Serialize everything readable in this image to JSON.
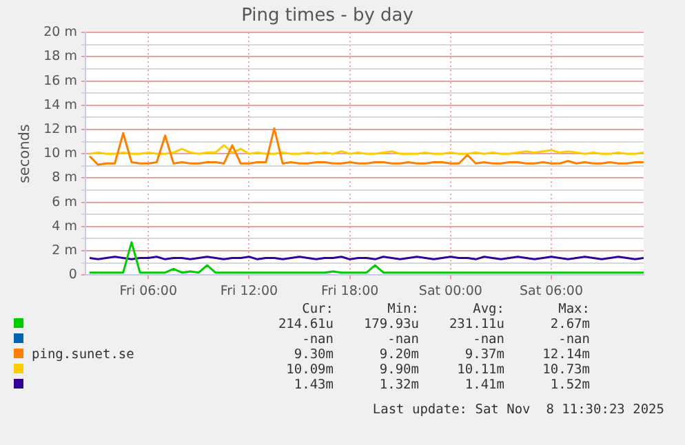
{
  "chart_data": {
    "type": "line",
    "title": "Ping times - by day",
    "ylabel": "seconds",
    "x": [
      "2025-11-07T02:30",
      "2025-11-07T03:00",
      "2025-11-07T03:30",
      "2025-11-07T04:00",
      "2025-11-07T04:30",
      "2025-11-07T05:00",
      "2025-11-07T05:30",
      "2025-11-07T06:00",
      "2025-11-07T06:30",
      "2025-11-07T07:00",
      "2025-11-07T07:30",
      "2025-11-07T08:00",
      "2025-11-07T08:30",
      "2025-11-07T09:00",
      "2025-11-07T09:30",
      "2025-11-07T10:00",
      "2025-11-07T10:30",
      "2025-11-07T11:00",
      "2025-11-07T11:30",
      "2025-11-07T12:00",
      "2025-11-07T12:30",
      "2025-11-07T13:00",
      "2025-11-07T13:30",
      "2025-11-07T14:00",
      "2025-11-07T14:30",
      "2025-11-07T15:00",
      "2025-11-07T15:30",
      "2025-11-07T16:00",
      "2025-11-07T16:30",
      "2025-11-07T17:00",
      "2025-11-07T17:30",
      "2025-11-07T18:00",
      "2025-11-07T18:30",
      "2025-11-07T19:00",
      "2025-11-07T19:30",
      "2025-11-07T20:00",
      "2025-11-07T20:30",
      "2025-11-07T21:00",
      "2025-11-07T21:30",
      "2025-11-07T22:00",
      "2025-11-07T22:30",
      "2025-11-07T23:00",
      "2025-11-07T23:30",
      "2025-11-08T00:00",
      "2025-11-08T00:30",
      "2025-11-08T01:00",
      "2025-11-08T01:30",
      "2025-11-08T02:00",
      "2025-11-08T02:30",
      "2025-11-08T03:00",
      "2025-11-08T03:30",
      "2025-11-08T04:00",
      "2025-11-08T04:30",
      "2025-11-08T05:00",
      "2025-11-08T05:30",
      "2025-11-08T06:00",
      "2025-11-08T06:30",
      "2025-11-08T07:00",
      "2025-11-08T07:30",
      "2025-11-08T08:00",
      "2025-11-08T08:30",
      "2025-11-08T09:00",
      "2025-11-08T09:30",
      "2025-11-08T10:00",
      "2025-11-08T10:30",
      "2025-11-08T11:00",
      "2025-11-08T11:30"
    ],
    "xlim": [
      "2025-11-07T02:15",
      "2025-11-08T11:30"
    ],
    "xticks": [
      {
        "value": "2025-11-07T06:00",
        "label": "Fri 06:00"
      },
      {
        "value": "2025-11-07T12:00",
        "label": "Fri 12:00"
      },
      {
        "value": "2025-11-07T18:00",
        "label": "Fri 18:00"
      },
      {
        "value": "2025-11-08T00:00",
        "label": "Sat 00:00"
      },
      {
        "value": "2025-11-08T06:00",
        "label": "Sat 06:00"
      }
    ],
    "ylim": [
      0,
      20
    ],
    "yticks": [
      0,
      {
        "value": 1,
        "label": null
      },
      {
        "value": 2,
        "label": "2 m"
      },
      {
        "value": 3,
        "label": null
      },
      {
        "value": 4,
        "label": "4 m"
      },
      {
        "value": 5,
        "label": null
      },
      {
        "value": 6,
        "label": "6 m"
      },
      {
        "value": 7,
        "label": null
      },
      {
        "value": 8,
        "label": "8 m"
      },
      {
        "value": 9,
        "label": null
      },
      {
        "value": 10,
        "label": "10 m"
      },
      {
        "value": 11,
        "label": null
      },
      {
        "value": 12,
        "label": "12 m"
      },
      {
        "value": 13,
        "label": null
      },
      {
        "value": 14,
        "label": "14 m"
      },
      {
        "value": 15,
        "label": null
      },
      {
        "value": 16,
        "label": "16 m"
      },
      {
        "value": 17,
        "label": null
      },
      {
        "value": 18,
        "label": "18 m"
      },
      {
        "value": 19,
        "label": null
      },
      {
        "value": 20,
        "label": "20 m"
      }
    ],
    "grid": true,
    "legend": "bottom",
    "marker": "none",
    "line_style": "solid",
    "series": [
      {
        "color": "#00cc00",
        "values": [
          0.2,
          0.2,
          0.2,
          0.2,
          0.2,
          2.7,
          0.2,
          0.2,
          0.2,
          0.2,
          0.5,
          0.2,
          0.3,
          0.2,
          0.8,
          0.2,
          0.2,
          0.2,
          0.2,
          0.2,
          0.2,
          0.2,
          0.2,
          0.2,
          0.2,
          0.2,
          0.2,
          0.2,
          0.2,
          0.3,
          0.2,
          0.2,
          0.2,
          0.2,
          0.8,
          0.2,
          0.2,
          0.2,
          0.2,
          0.2,
          0.2,
          0.2,
          0.2,
          0.2,
          0.2,
          0.2,
          0.2,
          0.2,
          0.2,
          0.2,
          0.2,
          0.2,
          0.2,
          0.2,
          0.2,
          0.2,
          0.2,
          0.2,
          0.2,
          0.2,
          0.2,
          0.2,
          0.2,
          0.2,
          0.2,
          0.2,
          0.2
        ]
      },
      {
        "color": "#0066b3",
        "values": [
          null,
          null,
          null,
          null,
          null,
          null,
          null,
          null,
          null,
          null,
          null,
          null,
          null,
          null,
          null,
          null,
          null,
          null,
          null,
          null,
          null,
          null,
          null,
          null,
          null,
          null,
          null,
          null,
          null,
          null,
          null,
          null,
          null,
          null,
          null,
          null,
          null,
          null,
          null,
          null,
          null,
          null,
          null,
          null,
          null,
          null,
          null,
          null,
          null,
          null,
          null,
          null,
          null,
          null,
          null,
          null,
          null,
          null,
          null,
          null,
          null,
          null,
          null,
          null,
          null,
          null,
          null
        ]
      },
      {
        "name": "ping.sunet.se",
        "color": "#ff8000",
        "values": [
          9.8,
          9.1,
          9.2,
          9.2,
          11.7,
          9.3,
          9.2,
          9.2,
          9.3,
          11.5,
          9.2,
          9.3,
          9.2,
          9.2,
          9.3,
          9.3,
          9.2,
          10.7,
          9.2,
          9.2,
          9.3,
          9.3,
          12.1,
          9.2,
          9.3,
          9.2,
          9.2,
          9.3,
          9.3,
          9.2,
          9.2,
          9.3,
          9.2,
          9.2,
          9.3,
          9.3,
          9.2,
          9.2,
          9.3,
          9.2,
          9.2,
          9.3,
          9.3,
          9.2,
          9.2,
          9.9,
          9.2,
          9.3,
          9.2,
          9.2,
          9.3,
          9.3,
          9.2,
          9.2,
          9.3,
          9.2,
          9.2,
          9.4,
          9.2,
          9.3,
          9.2,
          9.2,
          9.3,
          9.2,
          9.2,
          9.3,
          9.3
        ]
      },
      {
        "color": "#ffcc00",
        "values": [
          10.0,
          10.1,
          10.0,
          10.0,
          10.1,
          10.0,
          10.0,
          10.1,
          10.0,
          10.0,
          10.1,
          10.4,
          10.1,
          10.0,
          10.1,
          10.1,
          10.7,
          10.1,
          10.4,
          10.0,
          10.1,
          10.0,
          10.0,
          10.1,
          10.0,
          10.0,
          10.1,
          10.0,
          10.1,
          10.0,
          10.2,
          10.0,
          10.1,
          10.0,
          10.0,
          10.1,
          10.2,
          10.0,
          10.0,
          10.0,
          10.1,
          10.0,
          10.0,
          10.1,
          10.0,
          10.0,
          10.1,
          10.0,
          10.1,
          10.0,
          10.0,
          10.1,
          10.2,
          10.1,
          10.2,
          10.3,
          10.1,
          10.2,
          10.1,
          10.0,
          10.1,
          10.0,
          10.0,
          10.1,
          10.0,
          10.0,
          10.1
        ]
      },
      {
        "color": "#330099",
        "values": [
          1.4,
          1.3,
          1.4,
          1.5,
          1.4,
          1.3,
          1.4,
          1.4,
          1.5,
          1.3,
          1.4,
          1.4,
          1.3,
          1.4,
          1.5,
          1.4,
          1.3,
          1.4,
          1.4,
          1.5,
          1.3,
          1.4,
          1.4,
          1.3,
          1.4,
          1.5,
          1.4,
          1.3,
          1.4,
          1.4,
          1.5,
          1.3,
          1.4,
          1.4,
          1.3,
          1.5,
          1.4,
          1.3,
          1.4,
          1.5,
          1.4,
          1.3,
          1.4,
          1.5,
          1.4,
          1.4,
          1.3,
          1.5,
          1.4,
          1.3,
          1.4,
          1.5,
          1.4,
          1.3,
          1.4,
          1.5,
          1.4,
          1.3,
          1.4,
          1.5,
          1.4,
          1.3,
          1.4,
          1.5,
          1.4,
          1.3,
          1.4
        ]
      }
    ],
    "annotations": [
      "Cur:",
      "Min:",
      "Avg:",
      "Max:",
      "214.61u",
      "179.93u",
      "231.11u",
      "2.67m",
      "-nan",
      "-nan",
      "-nan",
      "-nan",
      "9.30m",
      "9.20m",
      "9.37m",
      "12.14m",
      "10.09m",
      "9.90m",
      "10.11m",
      "10.73m",
      "1.43m",
      "1.32m",
      "1.41m",
      "1.52m",
      "Last update: Sat Nov  8 11:30:23 2025"
    ]
  }
}
